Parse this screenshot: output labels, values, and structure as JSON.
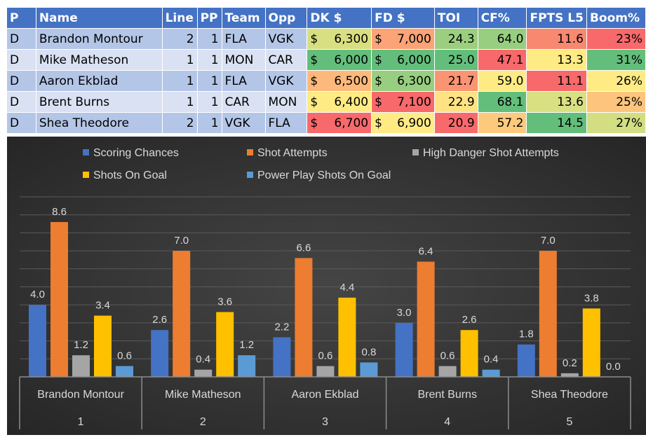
{
  "table": {
    "headers": [
      "P",
      "Name",
      "Line",
      "PP",
      "Team",
      "Opp",
      "DK $",
      "FD $",
      "TOI",
      "CF%",
      "FPTS L5",
      "Boom%"
    ],
    "rows": [
      {
        "P": "D",
        "Name": "Brandon Montour",
        "Line": "2",
        "PP": "1",
        "Team": "FLA",
        "Opp": "VGK",
        "DK": "6,300",
        "FD": "7,000",
        "TOI": "24.3",
        "CF": "64.0",
        "FPTS": "11.6",
        "Boom": "23%",
        "colors": {
          "DK": "#D7DF81",
          "FD": "#FCA377",
          "TOI": "#9BCF7F",
          "CF": "#98CE7F",
          "FPTS": "#F98870",
          "Boom": "#F8696B"
        }
      },
      {
        "P": "D",
        "Name": "Mike Matheson",
        "Line": "1",
        "PP": "1",
        "Team": "MON",
        "Opp": "CAR",
        "DK": "6,000",
        "FD": "6,000",
        "TOI": "25.0",
        "CF": "47.1",
        "FPTS": "13.3",
        "Boom": "31%",
        "colors": {
          "DK": "#63BE7B",
          "FD": "#63BE7B",
          "TOI": "#63BE7B",
          "CF": "#F8696B",
          "FPTS": "#FFEB84",
          "Boom": "#63BE7B"
        }
      },
      {
        "P": "D",
        "Name": "Aaron Ekblad",
        "Line": "1",
        "PP": "1",
        "Team": "FLA",
        "Opp": "VGK",
        "DK": "6,500",
        "FD": "6,300",
        "TOI": "21.7",
        "CF": "59.0",
        "FPTS": "11.1",
        "Boom": "26%",
        "colors": {
          "DK": "#FDB97B",
          "FD": "#98CE7F",
          "TOI": "#FA9473",
          "CF": "#FFEB84",
          "FPTS": "#F8696B",
          "Boom": "#FFEB84"
        }
      },
      {
        "P": "D",
        "Name": "Brent Burns",
        "Line": "1",
        "PP": "1",
        "Team": "CAR",
        "Opp": "MON",
        "DK": "6,400",
        "FD": "7,100",
        "TOI": "22.9",
        "CF": "68.1",
        "FPTS": "13.6",
        "Boom": "25%",
        "colors": {
          "DK": "#FFEB84",
          "FD": "#F8696B",
          "TOI": "#FFE383",
          "CF": "#63BE7B",
          "FPTS": "#D9E082",
          "Boom": "#FDC47D"
        }
      },
      {
        "P": "D",
        "Name": "Shea Theodore",
        "Line": "2",
        "PP": "1",
        "Team": "VGK",
        "Opp": "FLA",
        "DK": "6,700",
        "FD": "6,900",
        "TOI": "20.9",
        "CF": "57.2",
        "FPTS": "14.5",
        "Boom": "27%",
        "colors": {
          "DK": "#F8696B",
          "FD": "#FFEB84",
          "TOI": "#F8696B",
          "CF": "#FDCA7D",
          "FPTS": "#63BE7B",
          "Boom": "#D2DE81"
        }
      }
    ],
    "currency_symbol": "$"
  },
  "chart_data": {
    "type": "bar",
    "title": "",
    "categories": [
      "Brandon Montour",
      "Mike Matheson",
      "Aaron Ekblad",
      "Brent Burns",
      "Shea Theodore"
    ],
    "category_sublabels": [
      "1",
      "2",
      "3",
      "4",
      "5"
    ],
    "series": [
      {
        "name": "Scoring Chances",
        "color": "#4472C4",
        "values": [
          4.0,
          2.6,
          2.2,
          3.0,
          1.8
        ]
      },
      {
        "name": "Shot Attempts",
        "color": "#ED7D31",
        "values": [
          8.6,
          7.0,
          6.6,
          6.4,
          7.0
        ]
      },
      {
        "name": "High Danger Shot Attempts",
        "color": "#A5A5A5",
        "values": [
          1.2,
          0.4,
          0.6,
          0.6,
          0.2
        ]
      },
      {
        "name": "Shots On Goal",
        "color": "#FFC000",
        "values": [
          3.4,
          3.6,
          4.4,
          2.6,
          3.8
        ]
      },
      {
        "name": "Power Play Shots On Goal",
        "color": "#5B9BD5",
        "values": [
          0.6,
          1.2,
          0.8,
          0.4,
          0.0
        ]
      }
    ],
    "ylim": [
      0,
      10
    ],
    "grid": true,
    "legend": "top",
    "xlabel": "",
    "ylabel": ""
  }
}
